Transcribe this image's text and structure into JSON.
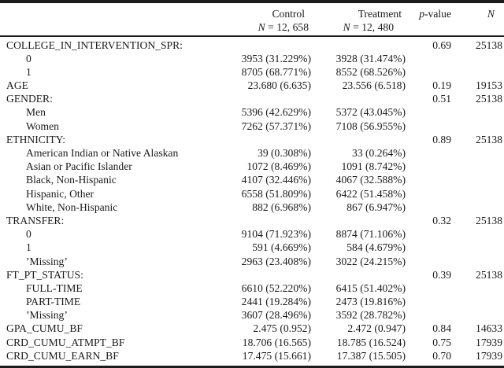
{
  "table": {
    "header": {
      "control": {
        "title": "Control",
        "n_symbol": "N",
        "n_eq": "= 12, 658"
      },
      "treatment": {
        "title": "Treatment",
        "n_symbol": "N",
        "n_eq": "= 12, 480"
      },
      "pvalue": {
        "symbol": "p",
        "suffix": "-value"
      },
      "n": {
        "symbol": "N"
      }
    },
    "rows": [
      {
        "label": "COLLEGE_IN_INTERVENTION_SPR:",
        "indent": false,
        "control": "",
        "treatment": "",
        "p": "0.69",
        "n": "25138"
      },
      {
        "label": "0",
        "indent": true,
        "control": "3953 (31.229%)",
        "treatment": "3928 (31.474%)",
        "p": "",
        "n": ""
      },
      {
        "label": "1",
        "indent": true,
        "control": "8705 (68.771%)",
        "treatment": "8552 (68.526%)",
        "p": "",
        "n": ""
      },
      {
        "label": "AGE",
        "indent": false,
        "control": "23.680 (6.635)",
        "treatment": "23.556 (6.518)",
        "p": "0.19",
        "n": "19153"
      },
      {
        "label": "GENDER:",
        "indent": false,
        "control": "",
        "treatment": "",
        "p": "0.51",
        "n": "25138"
      },
      {
        "label": "Men",
        "indent": true,
        "control": "5396 (42.629%)",
        "treatment": "5372 (43.045%)",
        "p": "",
        "n": ""
      },
      {
        "label": "Women",
        "indent": true,
        "control": "7262 (57.371%)",
        "treatment": "7108 (56.955%)",
        "p": "",
        "n": ""
      },
      {
        "label": "ETHNICITY:",
        "indent": false,
        "control": "",
        "treatment": "",
        "p": "0.89",
        "n": "25138"
      },
      {
        "label": "American Indian or Native Alaskan",
        "indent": true,
        "control": "39 (0.308%)",
        "treatment": "33 (0.264%)",
        "p": "",
        "n": ""
      },
      {
        "label": "Asian or Pacific Islander",
        "indent": true,
        "control": "1072 (8.469%)",
        "treatment": "1091 (8.742%)",
        "p": "",
        "n": ""
      },
      {
        "label": "Black, Non-Hispanic",
        "indent": true,
        "control": "4107 (32.446%)",
        "treatment": "4067 (32.588%)",
        "p": "",
        "n": ""
      },
      {
        "label": "Hispanic, Other",
        "indent": true,
        "control": "6558 (51.809%)",
        "treatment": "6422 (51.458%)",
        "p": "",
        "n": ""
      },
      {
        "label": "White, Non-Hispanic",
        "indent": true,
        "control": "882 (6.968%)",
        "treatment": "867 (6.947%)",
        "p": "",
        "n": ""
      },
      {
        "label": "TRANSFER:",
        "indent": false,
        "control": "",
        "treatment": "",
        "p": "0.32",
        "n": "25138"
      },
      {
        "label": "0",
        "indent": true,
        "control": "9104 (71.923%)",
        "treatment": "8874 (71.106%)",
        "p": "",
        "n": ""
      },
      {
        "label": "1",
        "indent": true,
        "control": "591 (4.669%)",
        "treatment": "584 (4.679%)",
        "p": "",
        "n": ""
      },
      {
        "label": "’Missing’",
        "indent": true,
        "control": "2963 (23.408%)",
        "treatment": "3022 (24.215%)",
        "p": "",
        "n": ""
      },
      {
        "label": "FT_PT_STATUS:",
        "indent": false,
        "control": "",
        "treatment": "",
        "p": "0.39",
        "n": "25138"
      },
      {
        "label": "FULL-TIME",
        "indent": true,
        "control": "6610 (52.220%)",
        "treatment": "6415 (51.402%)",
        "p": "",
        "n": ""
      },
      {
        "label": "PART-TIME",
        "indent": true,
        "control": "2441 (19.284%)",
        "treatment": "2473 (19.816%)",
        "p": "",
        "n": ""
      },
      {
        "label": "’Missing’",
        "indent": true,
        "control": "3607 (28.496%)",
        "treatment": "3592 (28.782%)",
        "p": "",
        "n": ""
      },
      {
        "label": "GPA_CUMU_BF",
        "indent": false,
        "control": "2.475 (0.952)",
        "treatment": "2.472 (0.947)",
        "p": "0.84",
        "n": "14633"
      },
      {
        "label": "CRD_CUMU_ATMPT_BF",
        "indent": false,
        "control": "18.706 (16.565)",
        "treatment": "18.785 (16.524)",
        "p": "0.75",
        "n": "17939"
      },
      {
        "label": "CRD_CUMU_EARN_BF",
        "indent": false,
        "control": "17.475 (15.661)",
        "treatment": "17.387 (15.505)",
        "p": "0.70",
        "n": "17939"
      }
    ]
  }
}
